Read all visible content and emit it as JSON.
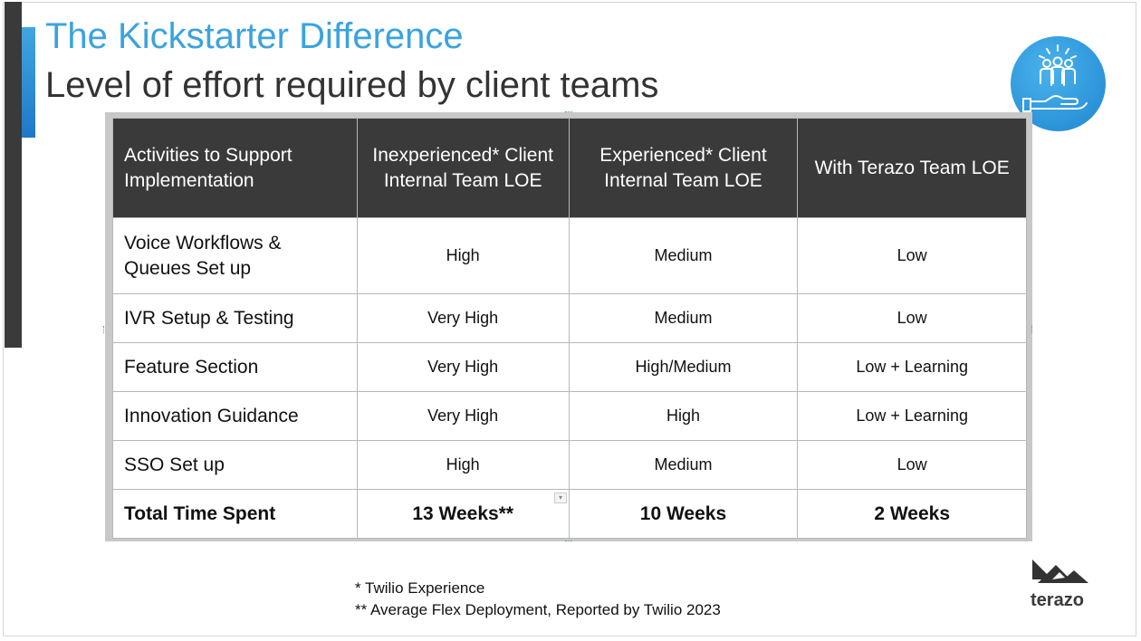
{
  "slide": {
    "title": "The Kickstarter Difference",
    "subtitle": "Level of effort required by client teams",
    "colors": {
      "accent_blue": "#3aa3df",
      "dark": "#3a3a3a"
    },
    "icons": [
      "team-hand-icon",
      "terazo-mountain-logo"
    ]
  },
  "table": {
    "headers": [
      "Activities to Support Implementation",
      "Inexperienced* Client Internal Team LOE",
      "Experienced* Client Internal Team LOE",
      "With Terazo Team LOE"
    ],
    "rows": [
      [
        "Voice Workflows & Queues Set up",
        "High",
        "Medium",
        "Low"
      ],
      [
        "IVR Setup & Testing",
        "Very High",
        "Medium",
        "Low"
      ],
      [
        "Feature Section",
        "Very High",
        "High/Medium",
        "Low + Learning"
      ],
      [
        "Innovation Guidance",
        "Very High",
        "High",
        "Low + Learning"
      ],
      [
        "SSO Set up",
        "High",
        "Medium",
        "Low"
      ]
    ],
    "total": [
      "Total Time Spent",
      "13 Weeks**",
      "10 Weeks",
      "2 Weeks"
    ]
  },
  "footnotes": [
    "* Twilio Experience",
    "** Average Flex Deployment, Reported by Twilio 2023"
  ],
  "logo_text": "terazo"
}
